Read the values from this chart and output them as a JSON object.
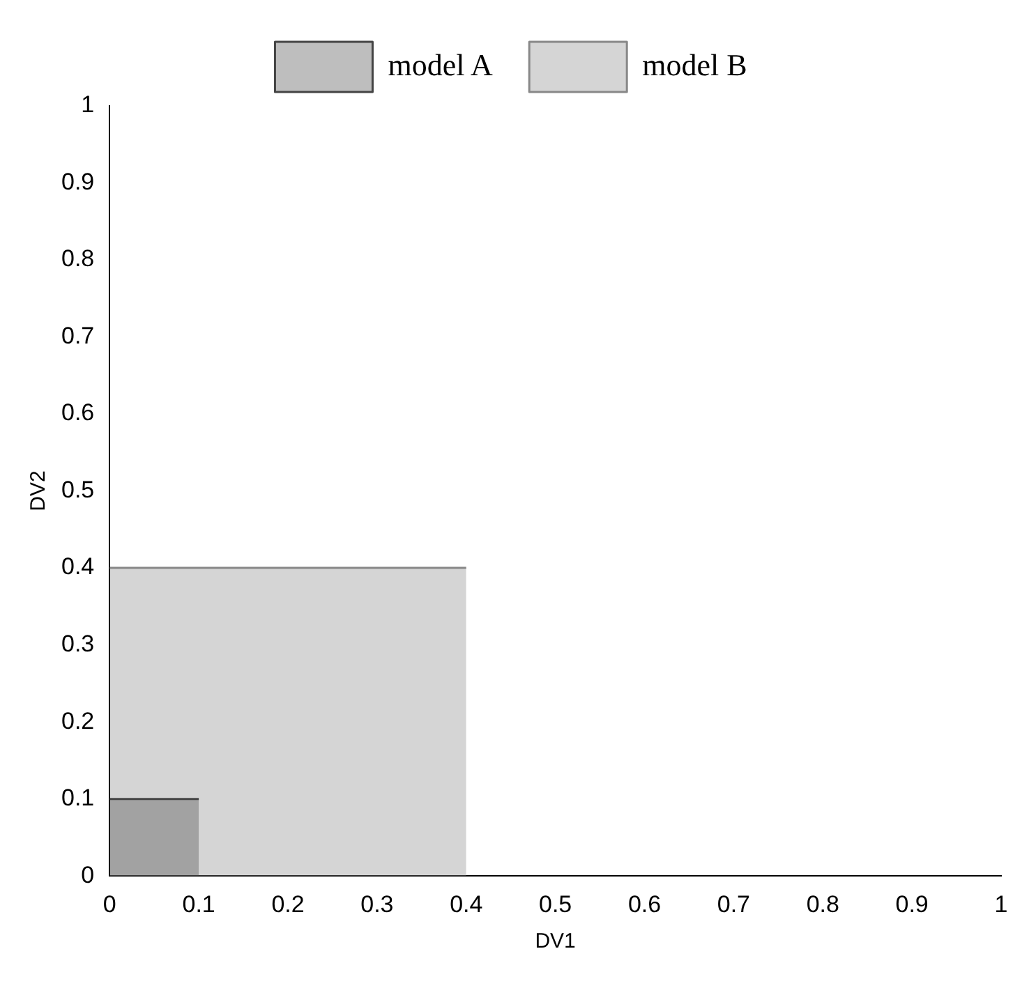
{
  "chart_data": {
    "type": "area",
    "xlabel": "DV1",
    "ylabel": "DV2",
    "legend": "top",
    "marker": "none",
    "xlim": [
      0,
      1
    ],
    "ylim": [
      0,
      1
    ],
    "xticks": [
      0,
      0.1,
      0.2,
      0.3,
      0.4,
      0.5,
      0.6,
      0.7,
      0.8,
      0.9,
      1
    ],
    "yticks": [
      0,
      0.1,
      0.2,
      0.3,
      0.4,
      0.5,
      0.6,
      0.7,
      0.8,
      0.9,
      1
    ],
    "series": [
      {
        "name": "model A",
        "color": "#444444",
        "x": [
          0,
          0.1
        ],
        "values": [
          0.1,
          0.1
        ]
      },
      {
        "name": "model B",
        "color": "#888888",
        "x": [
          0,
          0.4
        ],
        "values": [
          0.4,
          0.4
        ]
      }
    ]
  }
}
